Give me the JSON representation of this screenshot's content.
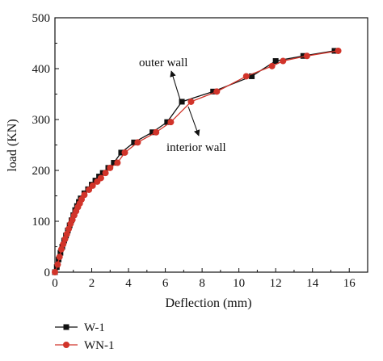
{
  "chart_data": {
    "type": "line",
    "xlabel": "Deflection (mm)",
    "ylabel": "load (KN)",
    "xlim": [
      0,
      17
    ],
    "ylim": [
      0,
      500
    ],
    "x_ticks": [
      "0",
      "2",
      "4",
      "6",
      "8",
      "10",
      "12",
      "14",
      "16"
    ],
    "y_ticks": [
      "0",
      "100",
      "200",
      "300",
      "400",
      "500"
    ],
    "grid": false,
    "legend_position": "bottom-left, below plot",
    "annotations": [
      {
        "text": "outer wall",
        "arrow_to_x": 6.9,
        "arrow_to_y": 335
      },
      {
        "text": "interior wall",
        "arrow_to_x": 6.7,
        "arrow_to_y": 330
      }
    ],
    "series": [
      {
        "name": "W-1",
        "color": "#111111",
        "marker": "square",
        "x": [
          0,
          0.1,
          0.2,
          0.3,
          0.4,
          0.5,
          0.6,
          0.7,
          0.8,
          0.9,
          1.0,
          1.1,
          1.2,
          1.3,
          1.4,
          1.6,
          1.8,
          2.0,
          2.2,
          2.4,
          2.6,
          2.9,
          3.2,
          3.6,
          4.3,
          5.3,
          6.1,
          6.9,
          8.6,
          10.7,
          12.0,
          13.5,
          15.2
        ],
        "y": [
          0,
          10,
          25,
          38,
          50,
          62,
          72,
          82,
          92,
          102,
          112,
          122,
          130,
          138,
          145,
          155,
          163,
          172,
          180,
          188,
          195,
          205,
          215,
          235,
          255,
          275,
          295,
          335,
          355,
          385,
          415,
          425,
          435
        ]
      },
      {
        "name": "WN-1",
        "color": "#d1342a",
        "marker": "circle",
        "x": [
          0,
          0.15,
          0.25,
          0.35,
          0.45,
          0.55,
          0.65,
          0.75,
          0.85,
          0.95,
          1.05,
          1.15,
          1.25,
          1.35,
          1.45,
          1.6,
          1.85,
          2.05,
          2.3,
          2.5,
          2.75,
          3.0,
          3.4,
          3.8,
          4.5,
          5.5,
          6.3,
          7.4,
          8.8,
          10.4,
          11.8,
          12.4,
          13.7,
          15.4
        ],
        "y": [
          0,
          15,
          30,
          45,
          55,
          65,
          75,
          85,
          95,
          103,
          112,
          120,
          128,
          135,
          143,
          152,
          162,
          170,
          178,
          185,
          195,
          205,
          215,
          235,
          255,
          275,
          295,
          335,
          355,
          385,
          405,
          415,
          425,
          435
        ]
      }
    ]
  }
}
